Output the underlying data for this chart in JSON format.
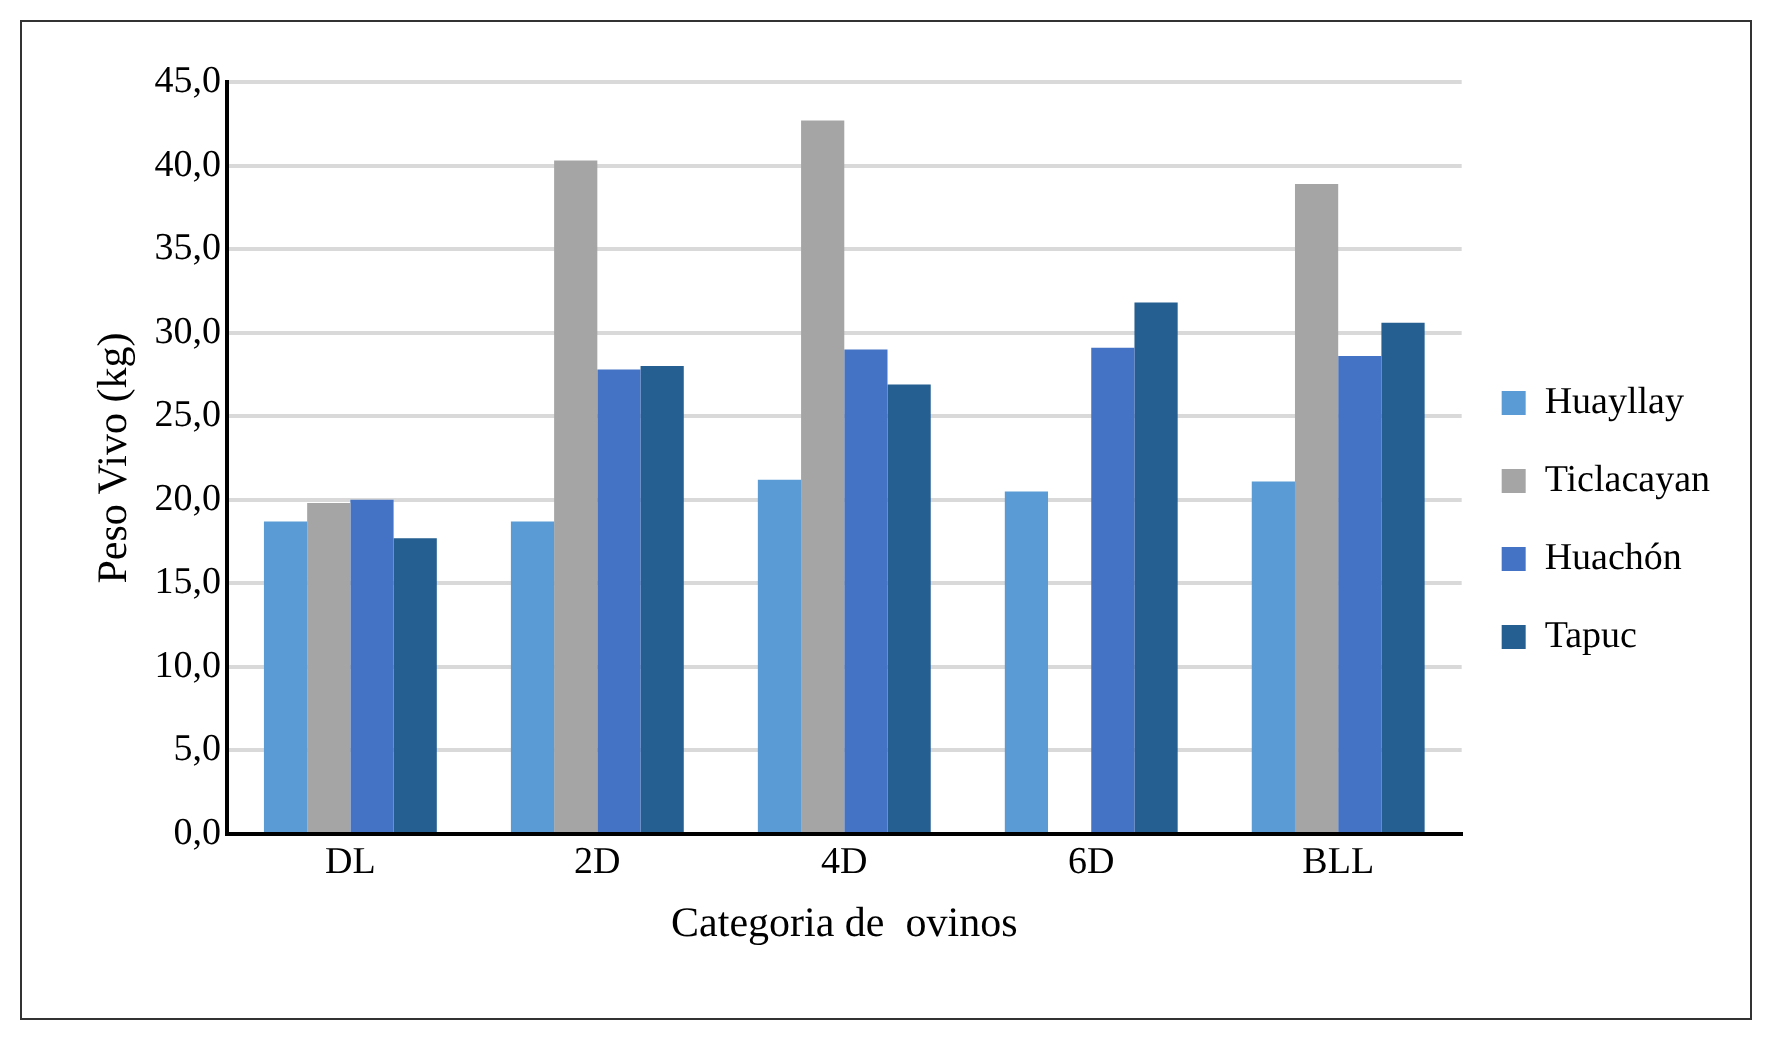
{
  "chart_data": {
    "type": "bar",
    "xlabel": "Categoria de  ovinos",
    "ylabel": "Peso Vivo (kg)",
    "categories": [
      "DL",
      "2D",
      "4D",
      "6D",
      "BLL"
    ],
    "series": [
      {
        "name": "Huayllay",
        "color": "#5b9bd5",
        "values": [
          18.7,
          18.7,
          21.2,
          20.5,
          21.1
        ]
      },
      {
        "name": "Ticlacayan",
        "color": "#a5a5a5",
        "values": [
          19.8,
          40.3,
          42.7,
          0,
          38.9
        ]
      },
      {
        "name": "Huachón",
        "color": "#4472c4",
        "values": [
          20.0,
          27.8,
          29.0,
          29.1,
          28.6
        ]
      },
      {
        "name": "Tapuc",
        "color": "#255e91",
        "values": [
          17.7,
          28.0,
          26.9,
          31.8,
          30.6
        ]
      }
    ],
    "ylim": [
      0,
      45
    ],
    "yticks": [
      {
        "value": 0,
        "label": "0,0"
      },
      {
        "value": 5,
        "label": "5,0"
      },
      {
        "value": 10,
        "label": "10,0"
      },
      {
        "value": 15,
        "label": "15,0"
      },
      {
        "value": 20,
        "label": "20,0"
      },
      {
        "value": 25,
        "label": "25,0"
      },
      {
        "value": 30,
        "label": "30,0"
      },
      {
        "value": 35,
        "label": "35,0"
      },
      {
        "value": 40,
        "label": "40,0"
      },
      {
        "value": 45,
        "label": "45,0"
      }
    ],
    "grid": "y",
    "legend": "right"
  }
}
